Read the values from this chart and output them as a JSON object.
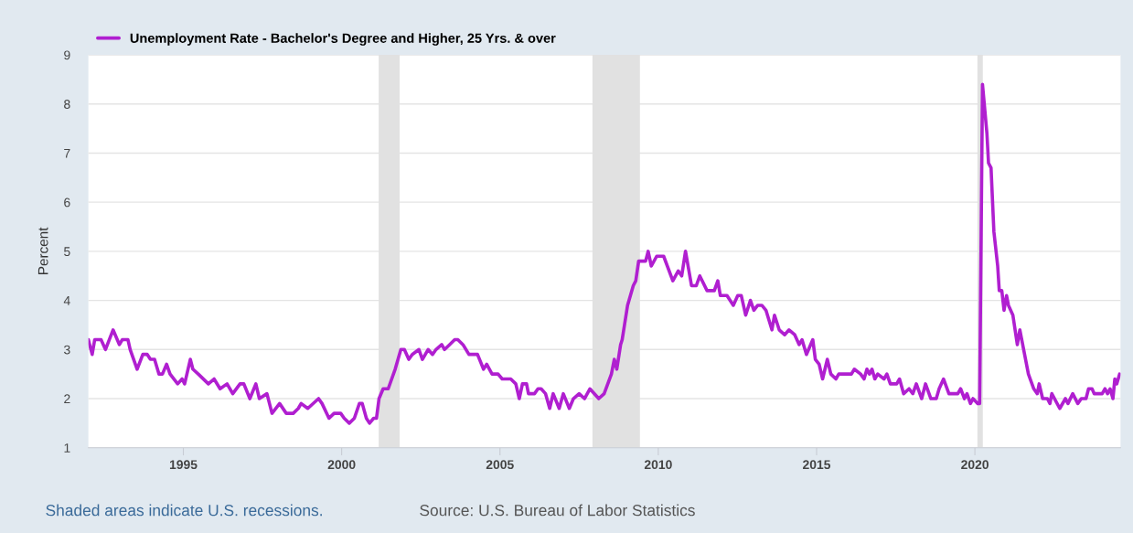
{
  "chart_data": {
    "type": "line",
    "ylabel": "Percent",
    "annotations": [
      "Shaded areas indicate U.S. recessions.",
      "Source: U.S. Bureau of Labor Statistics"
    ],
    "xlim": [
      1992.0,
      2024.6
    ],
    "xticks": [
      1995,
      2000,
      2005,
      2010,
      2015,
      2020
    ],
    "ylim": [
      1,
      9
    ],
    "yticks": [
      1,
      2,
      3,
      4,
      5,
      6,
      7,
      8,
      9
    ],
    "grid": "y",
    "legend": "top left",
    "bands": [
      {
        "axis": "x",
        "from": 2001.17,
        "to": 2001.83,
        "color": "#e1e1e1"
      },
      {
        "axis": "x",
        "from": 2007.92,
        "to": 2009.42,
        "color": "#e1e1e1"
      },
      {
        "axis": "x",
        "from": 2020.08,
        "to": 2020.25,
        "color": "#e1e1e1"
      }
    ],
    "series": [
      {
        "name": "Unemployment Rate - Bachelor's Degree and Higher, 25 Yrs. & over",
        "color": "#b01fd0",
        "x": [
          1992.0,
          1992.12,
          1992.2,
          1992.4,
          1992.54,
          1992.78,
          1992.98,
          1993.07,
          1993.25,
          1993.32,
          1993.54,
          1993.72,
          1993.86,
          1993.96,
          1994.09,
          1994.23,
          1994.34,
          1994.47,
          1994.58,
          1994.82,
          1994.96,
          1995.04,
          1995.22,
          1995.3,
          1995.47,
          1995.79,
          1995.97,
          1996.16,
          1996.38,
          1996.56,
          1996.79,
          1996.91,
          1997.1,
          1997.29,
          1997.4,
          1997.64,
          1997.8,
          1998.04,
          1998.25,
          1998.47,
          1998.63,
          1998.72,
          1998.93,
          1999.27,
          1999.38,
          1999.6,
          1999.76,
          1999.97,
          2000.08,
          2000.24,
          2000.4,
          2000.56,
          2000.65,
          2000.78,
          2000.88,
          2001.01,
          2001.1,
          2001.18,
          2001.31,
          2001.47,
          2001.69,
          2001.87,
          2001.98,
          2002.12,
          2002.23,
          2002.44,
          2002.55,
          2002.73,
          2002.87,
          2002.98,
          2003.16,
          2003.25,
          2003.41,
          2003.57,
          2003.67,
          2003.83,
          2004.02,
          2004.29,
          2004.48,
          2004.58,
          2004.75,
          2004.94,
          2005.07,
          2005.34,
          2005.5,
          2005.61,
          2005.71,
          2005.84,
          2005.9,
          2006.09,
          2006.2,
          2006.3,
          2006.44,
          2006.57,
          2006.68,
          2006.87,
          2007.0,
          2007.19,
          2007.32,
          2007.5,
          2007.67,
          2007.84,
          2008.12,
          2008.29,
          2008.52,
          2008.61,
          2008.69,
          2008.81,
          2008.86,
          2009.03,
          2009.21,
          2009.29,
          2009.38,
          2009.6,
          2009.68,
          2009.78,
          2009.95,
          2010.17,
          2010.46,
          2010.63,
          2010.74,
          2010.86,
          2011.05,
          2011.2,
          2011.31,
          2011.54,
          2011.77,
          2011.88,
          2011.96,
          2012.17,
          2012.37,
          2012.51,
          2012.62,
          2012.76,
          2012.91,
          2013.02,
          2013.14,
          2013.27,
          2013.4,
          2013.59,
          2013.67,
          2013.82,
          2013.99,
          2014.13,
          2014.31,
          2014.45,
          2014.54,
          2014.68,
          2014.88,
          2014.96,
          2015.08,
          2015.19,
          2015.34,
          2015.45,
          2015.61,
          2015.7,
          2016.1,
          2016.19,
          2016.39,
          2016.5,
          2016.59,
          2016.67,
          2016.75,
          2016.84,
          2016.93,
          2017.13,
          2017.22,
          2017.33,
          2017.53,
          2017.62,
          2017.75,
          2017.92,
          2018.04,
          2018.15,
          2018.32,
          2018.44,
          2018.61,
          2018.78,
          2018.87,
          2019.01,
          2019.18,
          2019.46,
          2019.55,
          2019.67,
          2019.75,
          2019.86,
          2019.94,
          2020.09,
          2020.15,
          2020.24,
          2020.38,
          2020.43,
          2020.51,
          2020.6,
          2020.72,
          2020.77,
          2020.85,
          2020.92,
          2021.0,
          2021.06,
          2021.2,
          2021.34,
          2021.42,
          2021.54,
          2021.69,
          2021.86,
          2021.97,
          2022.03,
          2022.14,
          2022.29,
          2022.37,
          2022.43,
          2022.68,
          2022.86,
          2022.94,
          2023.09,
          2023.25,
          2023.36,
          2023.51,
          2023.59,
          2023.7,
          2023.77,
          2024.02,
          2024.11,
          2024.19,
          2024.27,
          2024.36,
          2024.42,
          2024.48,
          2024.57
        ],
        "values": [
          3.2,
          2.9,
          3.2,
          3.2,
          3.0,
          3.4,
          3.1,
          3.2,
          3.2,
          3.0,
          2.6,
          2.9,
          2.9,
          2.8,
          2.8,
          2.5,
          2.5,
          2.7,
          2.5,
          2.3,
          2.4,
          2.3,
          2.8,
          2.6,
          2.5,
          2.3,
          2.4,
          2.2,
          2.3,
          2.1,
          2.3,
          2.3,
          2.0,
          2.3,
          2.0,
          2.1,
          1.7,
          1.9,
          1.7,
          1.7,
          1.8,
          1.9,
          1.8,
          2.0,
          1.9,
          1.6,
          1.7,
          1.7,
          1.6,
          1.5,
          1.6,
          1.9,
          1.9,
          1.6,
          1.5,
          1.6,
          1.6,
          2.0,
          2.2,
          2.2,
          2.6,
          3.0,
          3.0,
          2.8,
          2.9,
          3.0,
          2.8,
          3.0,
          2.9,
          3.0,
          3.1,
          3.0,
          3.1,
          3.2,
          3.2,
          3.1,
          2.9,
          2.9,
          2.6,
          2.7,
          2.5,
          2.5,
          2.4,
          2.4,
          2.3,
          2.0,
          2.3,
          2.3,
          2.1,
          2.1,
          2.2,
          2.2,
          2.1,
          1.8,
          2.1,
          1.8,
          2.1,
          1.8,
          2.0,
          2.1,
          2.0,
          2.2,
          2.0,
          2.1,
          2.5,
          2.8,
          2.6,
          3.1,
          3.2,
          3.9,
          4.3,
          4.4,
          4.8,
          4.8,
          5.0,
          4.7,
          4.9,
          4.9,
          4.4,
          4.6,
          4.5,
          5.0,
          4.3,
          4.3,
          4.5,
          4.2,
          4.2,
          4.4,
          4.1,
          4.1,
          3.9,
          4.1,
          4.1,
          3.7,
          4.0,
          3.8,
          3.9,
          3.9,
          3.8,
          3.4,
          3.7,
          3.4,
          3.3,
          3.4,
          3.3,
          3.1,
          3.2,
          2.9,
          3.2,
          2.8,
          2.7,
          2.4,
          2.8,
          2.5,
          2.4,
          2.5,
          2.5,
          2.6,
          2.5,
          2.4,
          2.6,
          2.5,
          2.6,
          2.4,
          2.5,
          2.4,
          2.5,
          2.3,
          2.3,
          2.4,
          2.1,
          2.2,
          2.1,
          2.3,
          2.0,
          2.3,
          2.0,
          2.0,
          2.2,
          2.4,
          2.1,
          2.1,
          2.2,
          2.0,
          2.1,
          1.9,
          2.0,
          1.9,
          1.9,
          8.4,
          7.4,
          6.8,
          6.7,
          5.4,
          4.7,
          4.2,
          4.2,
          3.8,
          4.1,
          3.9,
          3.7,
          3.1,
          3.4,
          3.0,
          2.5,
          2.2,
          2.1,
          2.3,
          2.0,
          2.0,
          1.9,
          2.1,
          1.8,
          2.0,
          1.9,
          2.1,
          1.9,
          2.0,
          2.0,
          2.2,
          2.2,
          2.1,
          2.1,
          2.2,
          2.1,
          2.2,
          2.0,
          2.4,
          2.3,
          2.5
        ]
      }
    ]
  }
}
